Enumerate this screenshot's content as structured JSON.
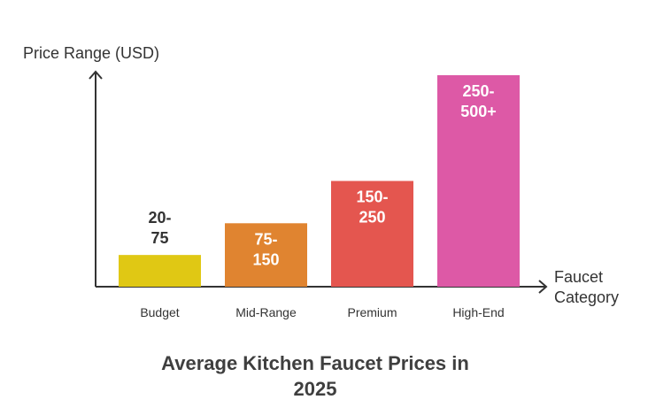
{
  "chart_data": {
    "type": "bar",
    "title_lines": [
      "Average Kitchen Faucet Prices in",
      "2025"
    ],
    "ylabel": "Price Range (USD)",
    "xlabel_lines": [
      "Faucet",
      "Category"
    ],
    "ylim": [
      0,
      500
    ],
    "categories": [
      "Budget",
      "Mid-Range",
      "Premium",
      "High-End"
    ],
    "ranges": [
      [
        20,
        75
      ],
      [
        75,
        150
      ],
      [
        150,
        250
      ],
      [
        250,
        500
      ]
    ],
    "values": [
      75,
      150,
      250,
      500
    ],
    "value_labels": [
      [
        "20-",
        "75"
      ],
      [
        "75-",
        "150"
      ],
      [
        "150-",
        "250"
      ],
      [
        "250-",
        "500+"
      ]
    ],
    "colors": [
      "#e0c814",
      "#e08430",
      "#e4564f",
      "#dd59a6"
    ],
    "label_colors": [
      "#333333",
      "#ffffff",
      "#ffffff",
      "#ffffff"
    ],
    "grid": false,
    "legend": "none"
  }
}
